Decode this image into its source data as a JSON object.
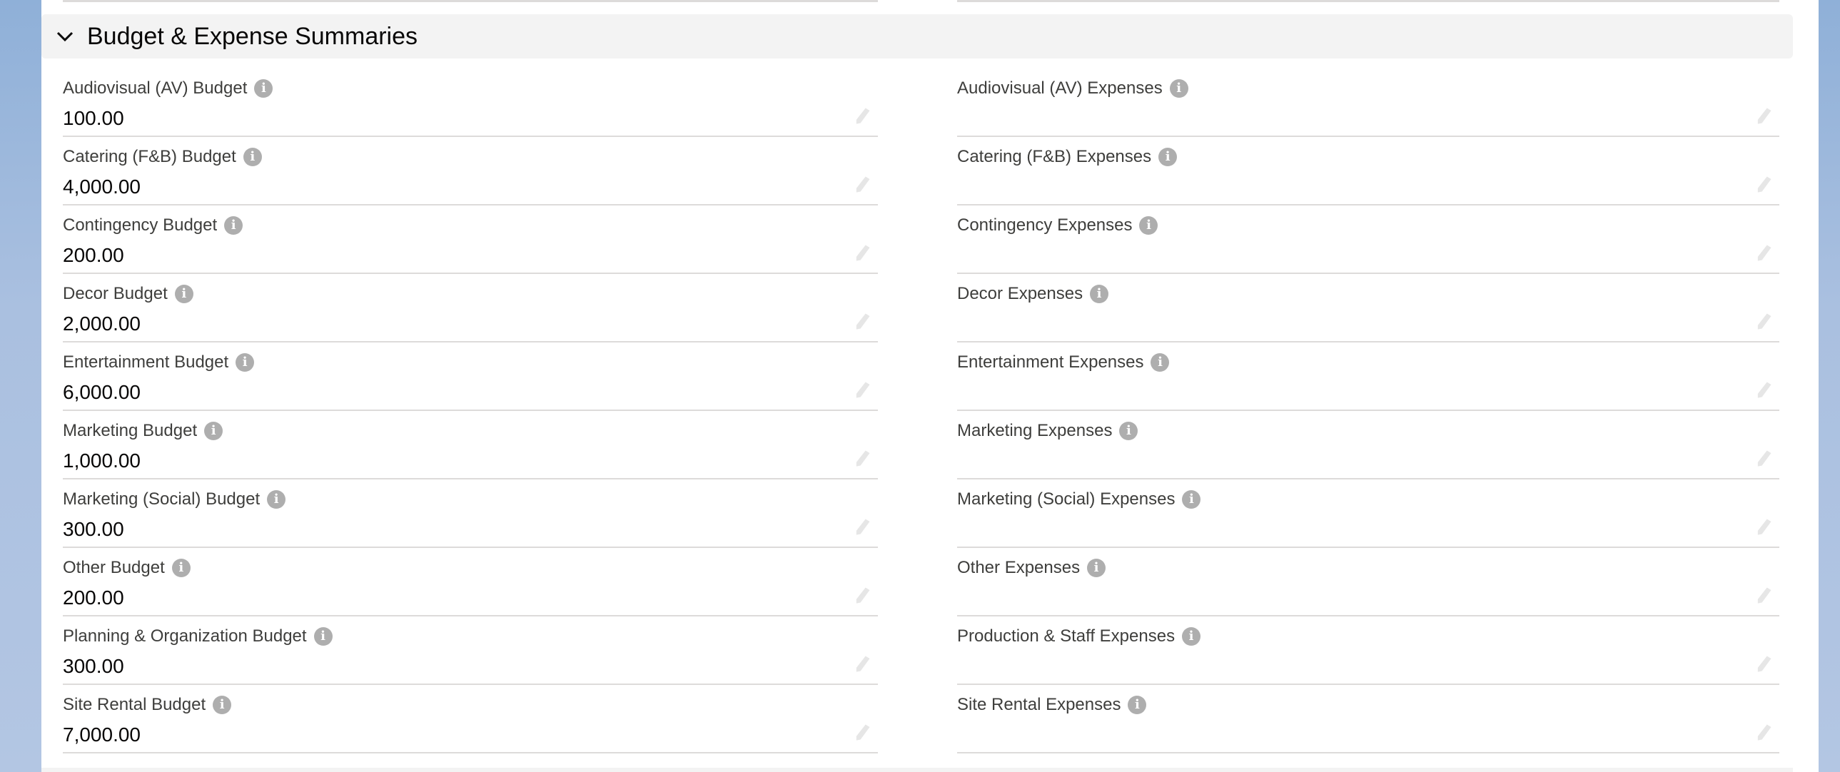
{
  "section": {
    "title": "Budget & Expense Summaries",
    "expanded": true
  },
  "budgets": [
    {
      "label": "Audiovisual (AV) Budget",
      "value": "100.00"
    },
    {
      "label": "Catering (F&B) Budget",
      "value": "4,000.00"
    },
    {
      "label": "Contingency Budget",
      "value": "200.00"
    },
    {
      "label": "Decor Budget",
      "value": "2,000.00"
    },
    {
      "label": "Entertainment Budget",
      "value": "6,000.00"
    },
    {
      "label": "Marketing Budget",
      "value": "1,000.00"
    },
    {
      "label": "Marketing (Social) Budget",
      "value": "300.00"
    },
    {
      "label": "Other Budget",
      "value": "200.00"
    },
    {
      "label": "Planning & Organization Budget",
      "value": "300.00"
    },
    {
      "label": "Site Rental Budget",
      "value": "7,000.00"
    }
  ],
  "expenses": [
    {
      "label": "Audiovisual (AV) Expenses",
      "value": ""
    },
    {
      "label": "Catering (F&B) Expenses",
      "value": ""
    },
    {
      "label": "Contingency Expenses",
      "value": ""
    },
    {
      "label": "Decor Expenses",
      "value": ""
    },
    {
      "label": "Entertainment Expenses",
      "value": ""
    },
    {
      "label": "Marketing Expenses",
      "value": ""
    },
    {
      "label": "Marketing (Social) Expenses",
      "value": ""
    },
    {
      "label": "Other Expenses",
      "value": ""
    },
    {
      "label": "Production & Staff Expenses",
      "value": ""
    },
    {
      "label": "Site Rental Expenses",
      "value": ""
    }
  ],
  "icons": {
    "info": "i",
    "edit": "pencil-icon",
    "chevron": "chevron-down-icon"
  }
}
